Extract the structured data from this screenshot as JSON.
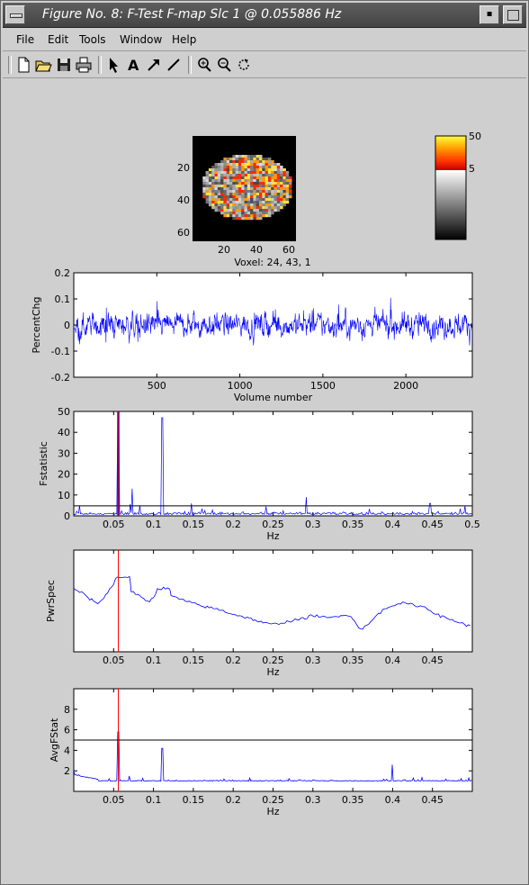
{
  "window": {
    "title": "Figure No. 8: F-Test F-map Slc 1 @ 0.055886 Hz",
    "min_glyph": "▪"
  },
  "menu": [
    {
      "id": "file",
      "label": "File"
    },
    {
      "id": "edit",
      "label": "Edit"
    },
    {
      "id": "tools",
      "label": "Tools"
    },
    {
      "id": "window",
      "label": "Window"
    },
    {
      "id": "help",
      "label": "Help"
    }
  ],
  "toolbar": [
    {
      "id": "new",
      "icon": "new-file-icon"
    },
    {
      "id": "open",
      "icon": "open-folder-icon"
    },
    {
      "id": "save",
      "icon": "save-disk-icon"
    },
    {
      "id": "print",
      "icon": "printer-icon"
    },
    {
      "id": "arrow",
      "icon": "pointer-arrow-icon"
    },
    {
      "id": "text",
      "icon": "insert-text-icon",
      "glyph": "A"
    },
    {
      "id": "insarrow",
      "icon": "insert-arrow-icon"
    },
    {
      "id": "line",
      "icon": "insert-line-icon"
    },
    {
      "id": "zoomin",
      "icon": "zoom-in-icon"
    },
    {
      "id": "zoomout",
      "icon": "zoom-out-icon"
    },
    {
      "id": "rotate",
      "icon": "rotate-icon"
    }
  ],
  "colors": {
    "series": "#0000ff",
    "marker": "#ff0000",
    "marker_f": "#8b0057",
    "threshold": "#000000"
  },
  "chart_data": [
    {
      "type": "heatmap",
      "caption": "Voxel: 24, 43, 1",
      "xticks": [
        20,
        40,
        60
      ],
      "yticks": [
        20,
        40,
        60
      ],
      "xlim": [
        1,
        64
      ],
      "ylim": [
        1,
        64
      ],
      "colorbar": {
        "ticks": [
          50,
          5
        ]
      }
    },
    {
      "type": "line",
      "xlabel": "Volume number",
      "ylabel": "PercentChg",
      "xlim": [
        0,
        2400
      ],
      "ylim": [
        -0.2,
        0.2
      ],
      "xticks": [
        500,
        1000,
        1500,
        2000
      ],
      "yticks": [
        -0.2,
        -0.1,
        0,
        0.1,
        0.2
      ],
      "series": [
        {
          "values_note": "noisy signal around 0, amplitude ~0.05 to 0.13"
        }
      ]
    },
    {
      "type": "line",
      "xlabel": "Hz",
      "ylabel": "Fstatistic",
      "xlim": [
        0,
        0.5
      ],
      "ylim": [
        0,
        50
      ],
      "xticks": [
        0.05,
        0.1,
        0.15,
        0.2,
        0.25,
        0.3,
        0.35,
        0.4,
        0.45,
        0.5
      ],
      "yticks": [
        0,
        10,
        20,
        30,
        40,
        50
      ],
      "threshold": 4.8,
      "marker": 0.0559,
      "peaks": [
        [
          0.0559,
          50
        ],
        [
          0.073,
          13
        ],
        [
          0.111,
          47
        ],
        [
          0.083,
          5
        ],
        [
          0.292,
          9
        ],
        [
          0.447,
          6
        ]
      ]
    },
    {
      "type": "line",
      "xlabel": "Hz",
      "ylabel": "PwrSpec",
      "xlim": [
        0,
        0.5
      ],
      "xticks": [
        0.05,
        0.1,
        0.15,
        0.2,
        0.25,
        0.3,
        0.35,
        0.4,
        0.45
      ],
      "marker": 0.0559,
      "series": [
        {
          "points": [
            [
              0.0,
              0.62
            ],
            [
              0.01,
              0.58
            ],
            [
              0.02,
              0.52
            ],
            [
              0.03,
              0.48
            ],
            [
              0.035,
              0.5
            ],
            [
              0.04,
              0.56
            ],
            [
              0.045,
              0.62
            ],
            [
              0.05,
              0.66
            ],
            [
              0.053,
              0.73
            ],
            [
              0.07,
              0.74
            ],
            [
              0.072,
              0.6
            ],
            [
              0.08,
              0.56
            ],
            [
              0.09,
              0.5
            ],
            [
              0.095,
              0.5
            ],
            [
              0.1,
              0.53
            ],
            [
              0.105,
              0.62
            ],
            [
              0.12,
              0.63
            ],
            [
              0.122,
              0.55
            ],
            [
              0.14,
              0.5
            ],
            [
              0.16,
              0.45
            ],
            [
              0.18,
              0.42
            ],
            [
              0.2,
              0.37
            ],
            [
              0.22,
              0.33
            ],
            [
              0.24,
              0.28
            ],
            [
              0.25,
              0.27
            ],
            [
              0.27,
              0.3
            ],
            [
              0.29,
              0.33
            ],
            [
              0.3,
              0.36
            ],
            [
              0.32,
              0.33
            ],
            [
              0.34,
              0.37
            ],
            [
              0.35,
              0.33
            ],
            [
              0.36,
              0.22
            ],
            [
              0.37,
              0.27
            ],
            [
              0.38,
              0.36
            ],
            [
              0.39,
              0.42
            ],
            [
              0.4,
              0.46
            ],
            [
              0.41,
              0.48
            ],
            [
              0.42,
              0.47
            ],
            [
              0.44,
              0.44
            ],
            [
              0.46,
              0.35
            ],
            [
              0.48,
              0.3
            ],
            [
              0.5,
              0.24
            ]
          ]
        }
      ]
    },
    {
      "type": "line",
      "xlabel": "Hz",
      "ylabel": "AvgFStat",
      "xlim": [
        0,
        0.5
      ],
      "ylim": [
        0,
        10
      ],
      "xticks": [
        0.05,
        0.1,
        0.15,
        0.2,
        0.25,
        0.3,
        0.35,
        0.4,
        0.45
      ],
      "yticks": [
        2,
        4,
        6,
        8
      ],
      "threshold": 5,
      "marker": 0.0559,
      "peaks": [
        [
          0.0559,
          5.8
        ],
        [
          0.111,
          4.2
        ],
        [
          0.0,
          2.0
        ],
        [
          0.4,
          2.6
        ],
        [
          0.07,
          1.5
        ]
      ]
    }
  ]
}
